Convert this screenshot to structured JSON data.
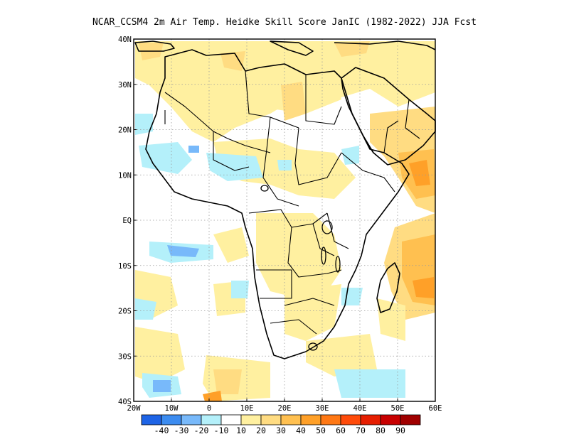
{
  "title": "NCAR_CCSM4  2m Air Temp. Heidke Skill Score JanIC (1982-2022) JJA Fcst",
  "axes": {
    "lat_labels": [
      "40N",
      "30N",
      "20N",
      "10N",
      "EQ",
      "10S",
      "20S",
      "30S",
      "40S"
    ],
    "lon_labels": [
      "20W",
      "10W",
      "0",
      "10E",
      "20E",
      "30E",
      "40E",
      "50E",
      "60E"
    ],
    "lat_values": [
      40,
      30,
      20,
      10,
      0,
      -10,
      -20,
      -30,
      -40
    ],
    "lon_values": [
      -20,
      -10,
      0,
      10,
      20,
      30,
      40,
      50,
      60
    ],
    "lat_range": [
      -40,
      40
    ],
    "lon_range": [
      -20,
      60
    ],
    "grid": "dotted"
  },
  "colorbar": {
    "colors": [
      "#1e64e6",
      "#3c8cf0",
      "#78b9fa",
      "#b4f0fa",
      "#ffffff",
      "#fff0a0",
      "#ffdc82",
      "#ffc050",
      "#ffa028",
      "#ff7814",
      "#ff4b0a",
      "#e61e00",
      "#c80000",
      "#a00000"
    ],
    "labels": [
      "-40",
      "-30",
      "-20",
      "-10",
      "10",
      "20",
      "30",
      "40",
      "50",
      "60",
      "70",
      "80",
      "90"
    ]
  },
  "map_features": [
    "coastlines",
    "country-borders",
    "lakes"
  ]
}
